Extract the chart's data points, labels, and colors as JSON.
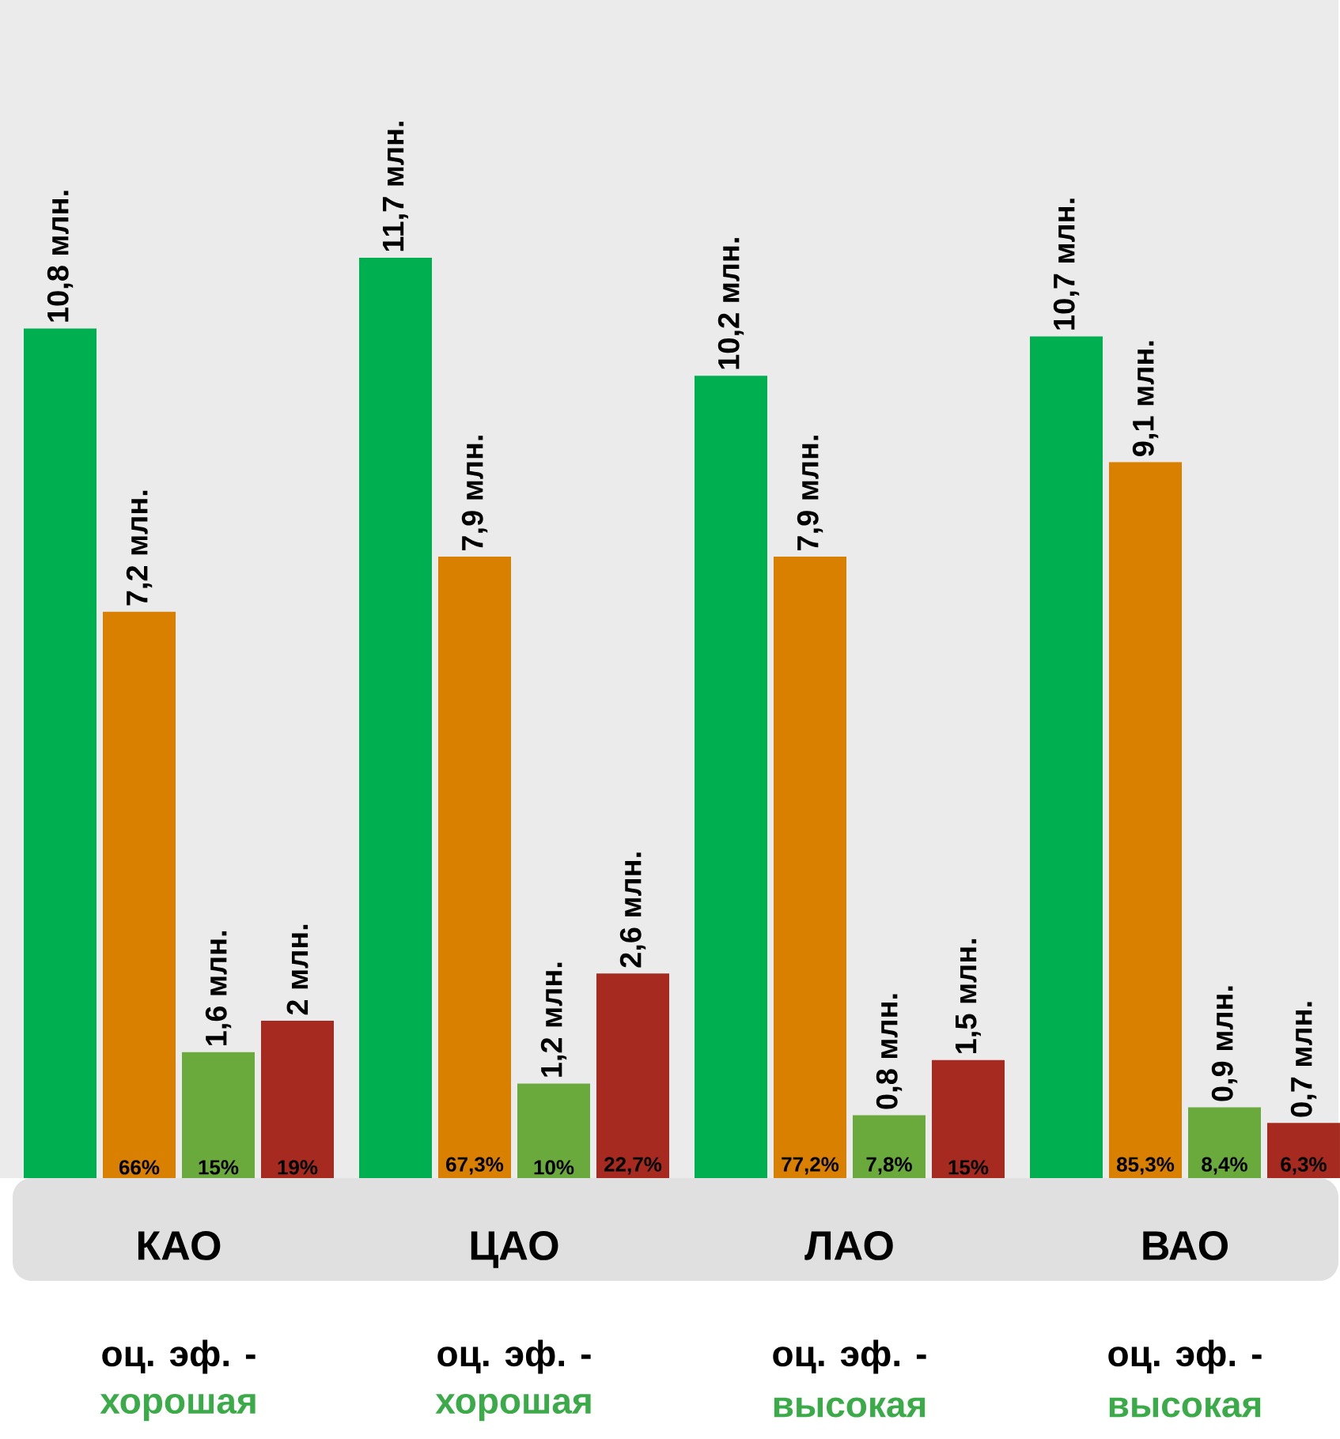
{
  "chart_data": {
    "type": "bar",
    "categories": [
      "КАО",
      "ЦАО",
      "ЛАО",
      "ВАО"
    ],
    "series": [
      {
        "color": "#00b050",
        "values": [
          10.8,
          11.7,
          10.2,
          10.7
        ],
        "value_labels": [
          "10,8 млн.",
          "11,7 млн.",
          "10,2 млн.",
          "10,7 млн."
        ]
      },
      {
        "color": "#d98000",
        "values": [
          7.2,
          7.9,
          7.9,
          9.1
        ],
        "value_labels": [
          "7,2 млн.",
          "7,9 млн.",
          "7,9 млн.",
          "9,1 млн."
        ]
      },
      {
        "color": "#6aaa3c",
        "values": [
          1.6,
          1.2,
          0.8,
          0.9
        ],
        "value_labels": [
          "1,6 млн.",
          "1,2 млн.",
          "0,8 млн.",
          "0,9 млн."
        ]
      },
      {
        "color": "#a62a20",
        "values": [
          2,
          2.6,
          1.5,
          0.7
        ],
        "value_labels": [
          "2 млн.",
          "2,6 млн.",
          "1,5 млн.",
          "0,7 млн."
        ]
      }
    ],
    "annotations": [
      "66%",
      "15%",
      "19%",
      "67,3%",
      "10%",
      "22,7%",
      "77,2%",
      "7,8%",
      "15%",
      "85,3%",
      "8,4%",
      "6,3%",
      "оц. эф. -",
      "оц. эф. -",
      "оц. эф. -",
      "оц. эф. -",
      "хорошая",
      "хорошая",
      "высокая",
      "высокая"
    ]
  }
}
